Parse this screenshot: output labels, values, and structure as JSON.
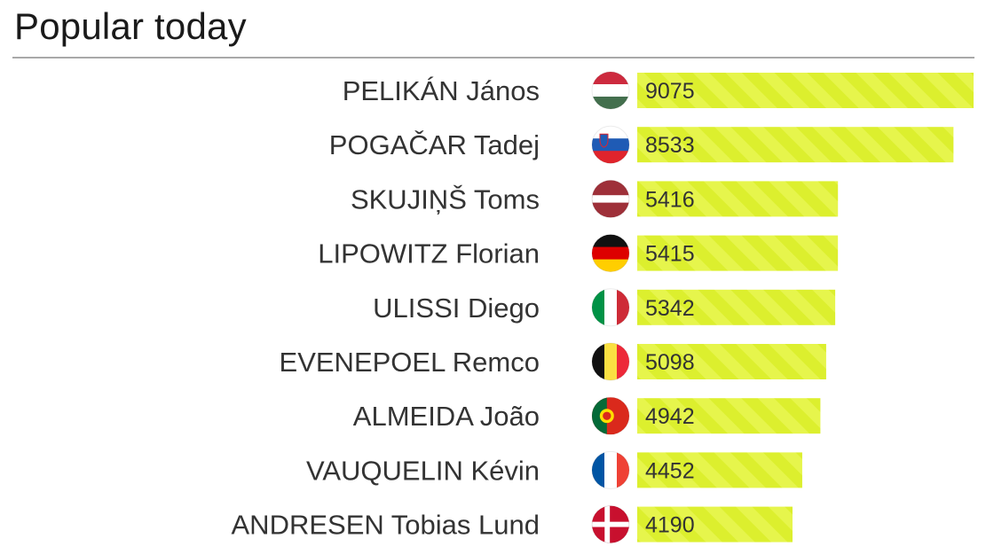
{
  "header": {
    "title": "Popular today"
  },
  "colors": {
    "bar": "#dcef2e",
    "bar_stripe": "#e9f75a",
    "text": "#333333",
    "rule": "#a9a9a9"
  },
  "chart_data": {
    "type": "bar",
    "orientation": "horizontal",
    "title": "Popular today",
    "xlabel": "",
    "ylabel": "",
    "categories": [
      "PELIKÁN János",
      "POGAČAR Tadej",
      "SKUJIŅŠ Toms",
      "LIPOWITZ Florian",
      "ULISSI Diego",
      "EVENEPOEL Remco",
      "ALMEIDA João",
      "VAUQUELIN Kévin",
      "ANDRESEN Tobias Lund"
    ],
    "flags": [
      "hungary-flag-icon",
      "slovenia-flag-icon",
      "latvia-flag-icon",
      "germany-flag-icon",
      "italy-flag-icon",
      "belgium-flag-icon",
      "portugal-flag-icon",
      "france-flag-icon",
      "denmark-flag-icon"
    ],
    "values": [
      9075,
      8533,
      5416,
      5415,
      5342,
      5098,
      4942,
      4452,
      4190
    ],
    "xlim": [
      0,
      9075
    ],
    "grid": false,
    "legend": "none"
  }
}
